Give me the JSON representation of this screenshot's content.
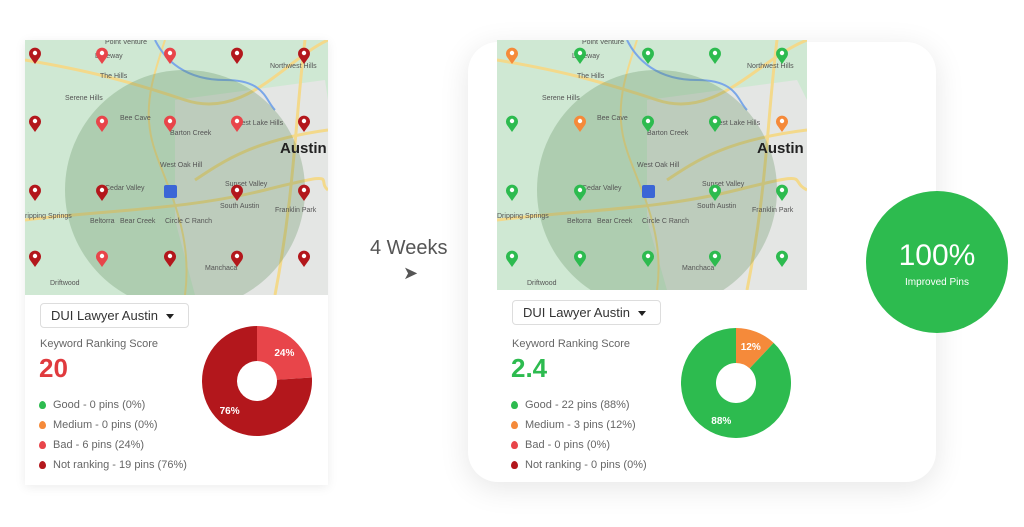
{
  "transition": {
    "label": "4 Weeks",
    "arrow_icon": "arrow-right-icon"
  },
  "badge": {
    "value": "100%",
    "label": "Improved Pins",
    "color": "#2dbb4f"
  },
  "map_labels": [
    "Point Venture",
    "Lakeway",
    "The Hills",
    "Serene Hills",
    "Bee Cave",
    "Barton Creek",
    "West Lake Hills",
    "Austin",
    "West Oak Hill",
    "Cedar Valley",
    "Sunset Valley",
    "South Austin",
    "Beltorra",
    "Bear Creek",
    "Circle C Ranch",
    "Franklin Park",
    "Dripping Springs",
    "Manchaca",
    "Driftwood",
    "Northwest Hills"
  ],
  "colors": {
    "good": "#2dbb4f",
    "medium": "#f58a3a",
    "bad": "#e8454a",
    "not_ranking": "#b3171c"
  },
  "panels": [
    {
      "keyword": "DUI Lawyer Austin",
      "score_label": "Keyword Ranking Score",
      "score": "20",
      "score_color": "#e03a3e",
      "legend": [
        "Good - 0 pins (0%)",
        "Medium - 0 pins (0%)",
        "Bad - 6 pins (24%)",
        "Not ranking - 19 pins (76%)"
      ],
      "pins": [
        [
          "n",
          "b",
          "b",
          "n",
          "n"
        ],
        [
          "n",
          "b",
          "b",
          "b",
          "n"
        ],
        [
          "n",
          "n",
          "",
          "n",
          "n"
        ],
        [
          "n",
          "b",
          "n",
          "n",
          "n"
        ]
      ],
      "chart_data": {
        "type": "pie",
        "donut": true,
        "slices": [
          {
            "label": "Bad",
            "value": 24,
            "text": "24%",
            "color": "#e8454a"
          },
          {
            "label": "Not ranking",
            "value": 76,
            "text": "76%",
            "color": "#b3171c"
          }
        ]
      }
    },
    {
      "keyword": "DUI Lawyer Austin",
      "score_label": "Keyword Ranking Score",
      "score": "2.4",
      "score_color": "#2dbb4f",
      "legend": [
        "Good - 22 pins (88%)",
        "Medium - 3 pins (12%)",
        "Bad - 0 pins (0%)",
        "Not ranking - 0 pins (0%)"
      ],
      "pins": [
        [
          "m",
          "g",
          "g",
          "g",
          "g"
        ],
        [
          "g",
          "m",
          "g",
          "g",
          "m"
        ],
        [
          "g",
          "g",
          "",
          "g",
          "g"
        ],
        [
          "g",
          "g",
          "g",
          "g",
          "g"
        ]
      ],
      "chart_data": {
        "type": "pie",
        "donut": true,
        "slices": [
          {
            "label": "Medium",
            "value": 12,
            "text": "12%",
            "color": "#f58a3a"
          },
          {
            "label": "Good",
            "value": 88,
            "text": "88%",
            "color": "#2dbb4f"
          }
        ]
      }
    }
  ]
}
